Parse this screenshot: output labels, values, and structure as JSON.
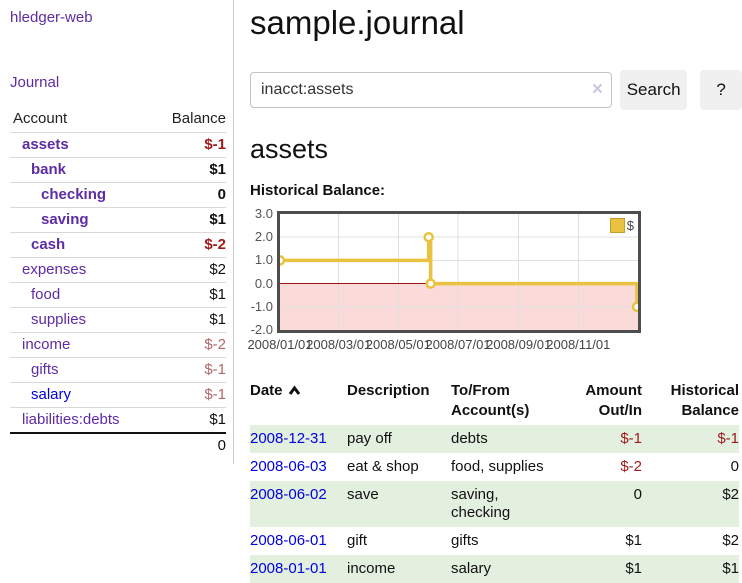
{
  "brand": "hledger-web",
  "nav": {
    "journal": "Journal"
  },
  "sidebar": {
    "header": {
      "account": "Account",
      "balance": "Balance"
    },
    "rows": [
      {
        "name": "assets",
        "balance": "$-1"
      },
      {
        "name": "bank",
        "balance": "$1"
      },
      {
        "name": "checking",
        "balance": "0"
      },
      {
        "name": "saving",
        "balance": "$1"
      },
      {
        "name": "cash",
        "balance": "$-2"
      },
      {
        "name": "expenses",
        "balance": "$2"
      },
      {
        "name": "food",
        "balance": "$1"
      },
      {
        "name": "supplies",
        "balance": "$1"
      },
      {
        "name": "income",
        "balance": "$-2"
      },
      {
        "name": "gifts",
        "balance": "$-1"
      },
      {
        "name": "salary",
        "balance": "$-1"
      },
      {
        "name": "liabilities:debts",
        "balance": "$1"
      }
    ],
    "total": "0"
  },
  "header": {
    "title": "sample.journal"
  },
  "search": {
    "value": "inacct:assets",
    "clear": "×",
    "button": "Search",
    "help": "?"
  },
  "account": {
    "title": "assets",
    "chart_label": "Historical Balance:"
  },
  "chart_data": {
    "type": "line",
    "step": true,
    "title": "Historical Balance",
    "series": [
      {
        "name": "$",
        "color": "#e8c240",
        "points": [
          [
            "2008-01-01",
            1
          ],
          [
            "2008-06-01",
            2
          ],
          [
            "2008-06-03",
            0
          ],
          [
            "2008-12-31",
            -1
          ]
        ]
      }
    ],
    "xlim": [
      "2008-01-01",
      "2009-01-01"
    ],
    "ylim": [
      -2,
      3
    ],
    "y_tick_values": [
      3,
      2,
      1,
      0,
      -1,
      -2
    ],
    "y_tick_labels": [
      "3.0",
      "2.0",
      "1.0",
      "0.0",
      "-1.0",
      "-2.0"
    ],
    "x_tick_dates": [
      "2008-01-01",
      "2008-03-01",
      "2008-05-01",
      "2008-07-01",
      "2008-09-01",
      "2008-11-01"
    ],
    "x_tick_labels": [
      "2008/01/01",
      "2008/03/01",
      "2008/05/01",
      "2008/07/01",
      "2008/09/01",
      "2008/11/01"
    ],
    "legend": "$",
    "legend_position": "top-right",
    "grid": true,
    "negative_fill": "#fbdada",
    "zero_line_color": "#991111"
  },
  "register": {
    "columns": {
      "date": "Date",
      "description": "Description",
      "accounts": "To/From Account(s)",
      "amount": "Amount Out/In",
      "balance": "Historical Balance"
    },
    "rows": [
      {
        "date": "2008-12-31",
        "description": "pay off",
        "accounts": "debts",
        "amount": "$-1",
        "balance": "$-1"
      },
      {
        "date": "2008-06-03",
        "description": "eat & shop",
        "accounts": "food, supplies",
        "amount": "$-2",
        "balance": "0"
      },
      {
        "date": "2008-06-02",
        "description": "save",
        "accounts": "saving,\nchecking",
        "amount": "0",
        "balance": "$2"
      },
      {
        "date": "2008-06-01",
        "description": "gift",
        "accounts": "gifts",
        "amount": "$1",
        "balance": "$2"
      },
      {
        "date": "2008-01-01",
        "description": "income",
        "accounts": "salary",
        "amount": "$1",
        "balance": "$1"
      }
    ]
  },
  "colors": {
    "link_purple": "#5e2ca5",
    "link_blue": "#0000e0",
    "negative": "#9e1a1a",
    "negative_muted": "#b26868",
    "row_stripe_green": "#e3efdf",
    "series_gold": "#e8c240"
  }
}
